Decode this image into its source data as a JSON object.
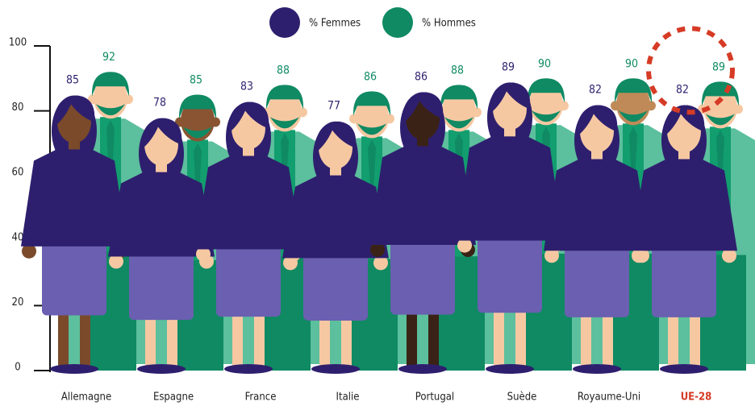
{
  "chart_data": {
    "type": "pictogram",
    "categories": [
      "Allemagne",
      "Espagne",
      "France",
      "Italie",
      "Portugal",
      "Suède",
      "Royaume-Uni",
      "UE-28"
    ],
    "series": [
      {
        "name": "% Femmes",
        "color": "#2e1f6e",
        "values": [
          85,
          78,
          83,
          77,
          86,
          89,
          82,
          82
        ]
      },
      {
        "name": "% Hommes",
        "color": "#0f8a63",
        "values": [
          92,
          85,
          88,
          86,
          88,
          90,
          90,
          89
        ]
      }
    ],
    "ylim": [
      0,
      100
    ],
    "yticks": [
      0,
      20,
      40,
      60,
      80,
      100
    ],
    "highlight": 7,
    "highlight_color": "#d63b25"
  }
}
